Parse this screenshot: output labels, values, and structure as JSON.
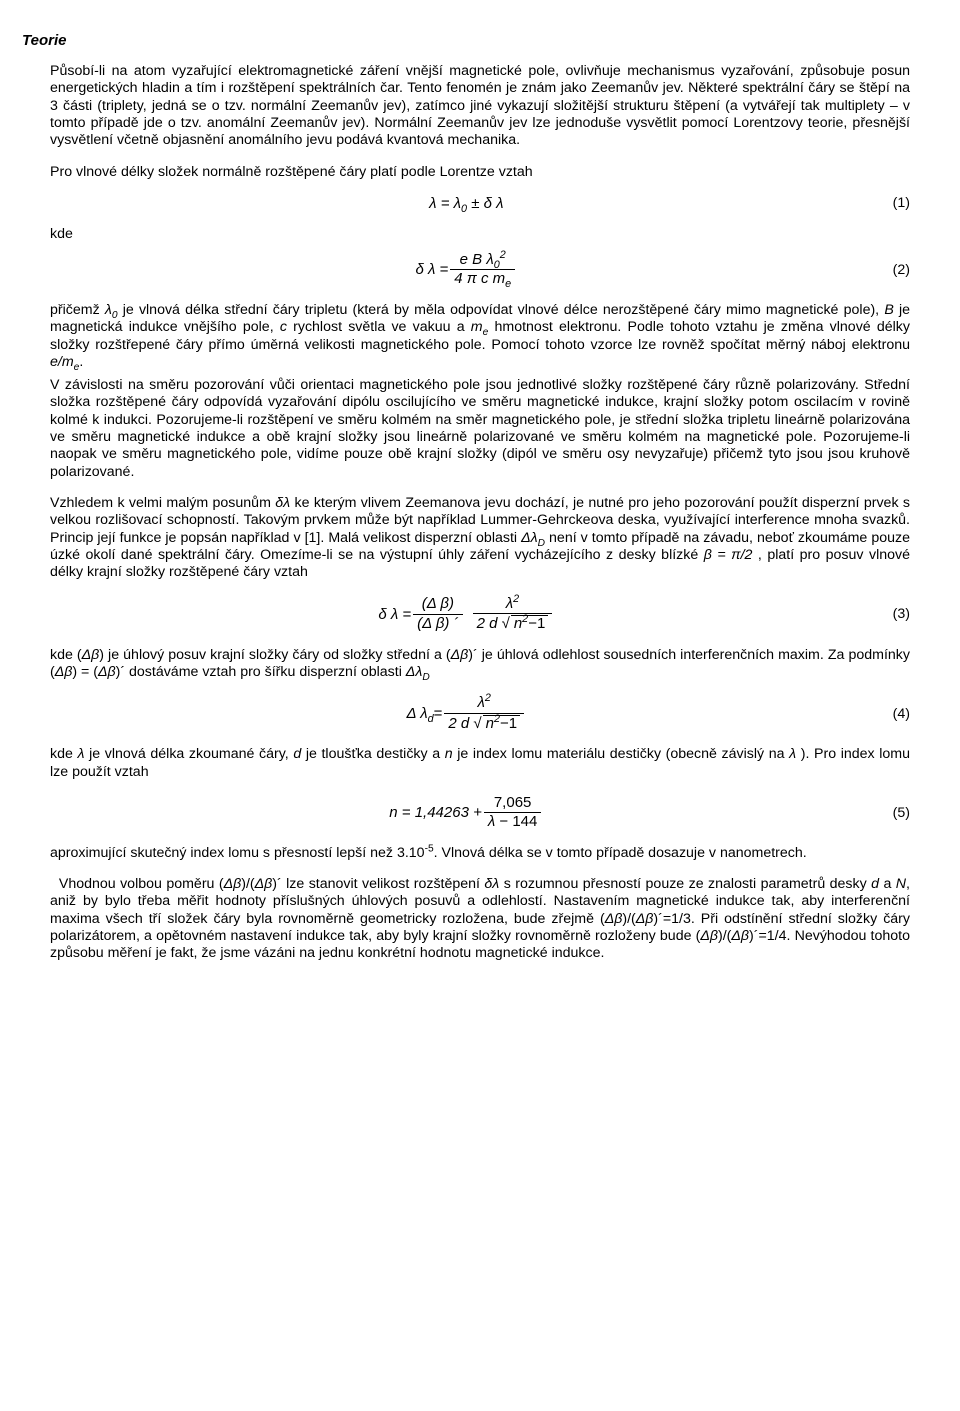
{
  "title": "Teorie",
  "para1": "Působí-li na atom vyzařující elektromagnetické záření vnější magnetické pole, ovlivňuje mechanismus vyzařování, způsobuje posun energetických hladin a tím i rozštěpení spektrálních čar. Tento fenomén je znám jako Zeemanův jev. Některé spektrální čáry se štěpí na 3 části (triplety, jedná se o tzv. normální Zeemanův jev), zatímco jiné vykazují složitější strukturu štěpení (a vytvářejí tak multiplety – v tomto případě jde o tzv. anomální Zeemanův jev). Normální Zeemanův jev lze jednoduše vysvětlit pomocí Lorentzovy teorie, přesnější vysvětlení včetně objasnění anomálního jevu podává kvantová mechanika.",
  "para2": "Pro vlnové délky složek normálně rozštěpené čáry platí podle Lorentze vztah",
  "eq1_num": "(1)",
  "kde_label": "kde",
  "eq2_num": "(2)",
  "para3a": "přičemž ",
  "para3_lambda0": "λ",
  "para3_lambda0_sub": "0",
  "para3b": " je vlnová délka střední čáry tripletu (která by měla odpovídat vlnové délce nerozštěpené čáry mimo magnetické pole), ",
  "para3_B": "B",
  "para3c": " je magnetická indukce vnějšího pole, ",
  "para3_c": "c",
  "para3d": " rychlost světla ve vakuu a ",
  "para3_me": "m",
  "para3_me_sub": "e",
  "para3e": " hmotnost elektronu. Podle tohoto vztahu je změna vlnové délky složky rozštřepené čáry přímo úměrná velikosti magnetického pole. Pomocí tohoto vzorce lze rovněž spočítat měrný náboj elektronu ",
  "para3_eme": "e/m",
  "para3_eme_sub": "e",
  "para3f": ".",
  "para4": "V závislosti na směru pozorování vůči orientaci magnetického pole jsou jednotlivé složky rozštěpené čáry různě polarizovány. Střední složka rozštěpené čáry odpovídá vyzařování dipólu oscilujícího ve směru magnetické indukce, krajní složky potom oscilacím v rovině kolmé k indukci. Pozorujeme-li rozštěpení ve směru kolmém na směr magnetického pole, je střední složka tripletu lineárně polarizována ve směru magnetické indukce a obě krajní složky jsou lineárně polarizované ve směru kolmém na magnetické pole. Pozorujeme-li naopak ve směru magnetického pole, vidíme pouze obě krajní složky (dipól ve směru osy nevyzařuje) přičemž tyto jsou jsou kruhově polarizované.",
  "para5a": "Vzhledem k velmi malým posunům ",
  "para5_dl": "δλ",
  "para5b": " ke kterým vlivem Zeemanova jevu dochází, je nutné pro jeho pozorování použít disperzní prvek s velkou rozlišovací schopností. Takovým prvkem může být například Lummer-Gehrckeova deska, využívající interference mnoha svazků. Princip její funkce je popsán například v [1]. Malá velikost disperzní oblasti ",
  "para5_DlD": "Δλ",
  "para5_DlD_sub": "D",
  "para5c": " není v tomto případě na závadu, neboť zkoumáme pouze úzké okolí dané spektrální čáry. Omezíme-li se na výstupní úhly záření vycházejícího z desky blízké ",
  "para5_beta": "β = π/2",
  "para5d": " , platí pro posuv vlnové délky krajní složky rozštěpené čáry vztah",
  "eq3_num": "(3)",
  "para6a": "kde (",
  "para6_db1": "Δβ",
  "para6b": ") je úhlový posuv krajní složky čáry od složky střední a (",
  "para6_db2": "Δβ",
  "para6c": ")´ je úhlová odlehlost sousedních interferenčních maxim. Za podmínky (",
  "para6_db3": "Δβ",
  "para6d": ") = (",
  "para6_db4": "Δβ",
  "para6e": ")´ dostáváme vztah pro šířku disperzní oblasti ",
  "para6_DlD": "Δλ",
  "para6_DlD_sub": "D",
  "eq4_num": "(4)",
  "para7a": "kde ",
  "para7_l": "λ",
  "para7b": " je vlnová délka zkoumané čáry, ",
  "para7_d": "d",
  "para7c": " je tloušťka destičky a ",
  "para7_n": "n",
  "para7d": " je index lomu materiálu destičky (obecně závislý na ",
  "para7_l2": "λ",
  "para7e": " ). Pro index lomu lze použít vztah",
  "eq5_num": "(5)",
  "para8a": "aproximující skutečný index lomu s přesností lepší než 3.10",
  "para8_exp": "-5",
  "para8b": ". Vlnová délka se v tomto případě dosazuje v nanometrech.",
  "para9a": "Vhodnou volbou poměru (",
  "para9_db1": "Δβ",
  "para9b": ")/(",
  "para9_db2": "Δβ",
  "para9c": ")´ lze stanovit velikost rozštěpení ",
  "para9_dl": "δλ",
  "para9d": " s rozumnou přesností pouze ze znalosti parametrů desky ",
  "para9_d": "d",
  "para9e": " a ",
  "para9_N": "N",
  "para9f": ", aniž by bylo třeba měřit hodnoty příslušných úhlových posuvů a odlehlostí. Nastavením magnetické indukce tak, aby interferenční maxima všech tří složek čáry byla rovnoměrně geometricky rozložena, bude zřejmě (",
  "para9_db3": "Δβ",
  "para9g": ")/(",
  "para9_db4": "Δβ",
  "para9h": ")´=1/3. Při odstínění střední složky čáry polarizátorem, a opětovném nastavení indukce tak, aby byly krajní složky rovnoměrně rozloženy bude (",
  "para9_db5": "Δβ",
  "para9i": ")/(",
  "para9_db6": "Δβ",
  "para9j": ")´=1/4. Nevýhodou tohoto způsobu měření je fakt, že jsme vázáni na jednu konkrétní hodnotu magnetické indukce.",
  "eq1": {
    "lhs": "λ = λ",
    "sub0": "0",
    "pm": " ± δ λ"
  },
  "eq2": {
    "lhs": "δ λ = ",
    "num_e": "e B λ",
    "num_sub": "0",
    "num_sup": "2",
    "den": "4 π c m",
    "den_sub": "e"
  },
  "eq3": {
    "lhs": "δ λ = ",
    "frac1_num": "(Δ β)",
    "frac1_den": "(Δ β) ´",
    "frac2_num": "λ",
    "frac2_num_sup": "2",
    "frac2_den_a": "2 d ",
    "frac2_den_b": "n",
    "frac2_den_sup": "2",
    "frac2_den_c": "−1"
  },
  "eq4": {
    "lhs": "Δ λ",
    "lhs_sub": "d",
    "eq": " = ",
    "num": "λ",
    "num_sup": "2",
    "den_a": "2 d ",
    "den_b": "n",
    "den_sup": "2",
    "den_c": "−1"
  },
  "eq5": {
    "lhs": "n = 1,44263 + ",
    "num": "7,065",
    "den": "λ − 144"
  }
}
